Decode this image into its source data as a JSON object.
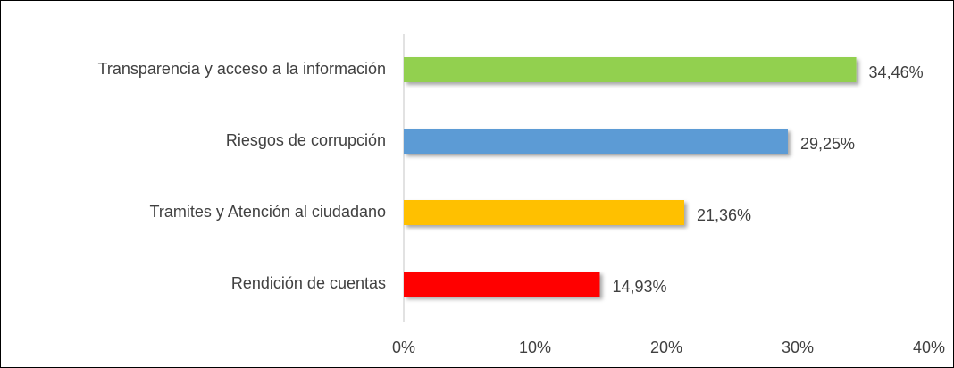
{
  "chart_data": {
    "type": "bar",
    "orientation": "horizontal",
    "categories": [
      "Transparencia y acceso a la información",
      "Riesgos de corrupción",
      "Tramites y Atención al ciudadano",
      "Rendición de cuentas"
    ],
    "values": [
      34.46,
      29.25,
      21.36,
      14.93
    ],
    "value_labels": [
      "34,46%",
      "29,25%",
      "21,36%",
      "14,93%"
    ],
    "colors": [
      "#92d050",
      "#5b9bd5",
      "#ffc000",
      "#ff0000"
    ],
    "xlim": [
      0,
      40
    ],
    "xticks": [
      {
        "value": 0,
        "label": "0%"
      },
      {
        "value": 10,
        "label": "10%"
      },
      {
        "value": 20,
        "label": "20%"
      },
      {
        "value": 30,
        "label": "30%"
      },
      {
        "value": 40,
        "label": "40%"
      }
    ],
    "grid": false
  }
}
